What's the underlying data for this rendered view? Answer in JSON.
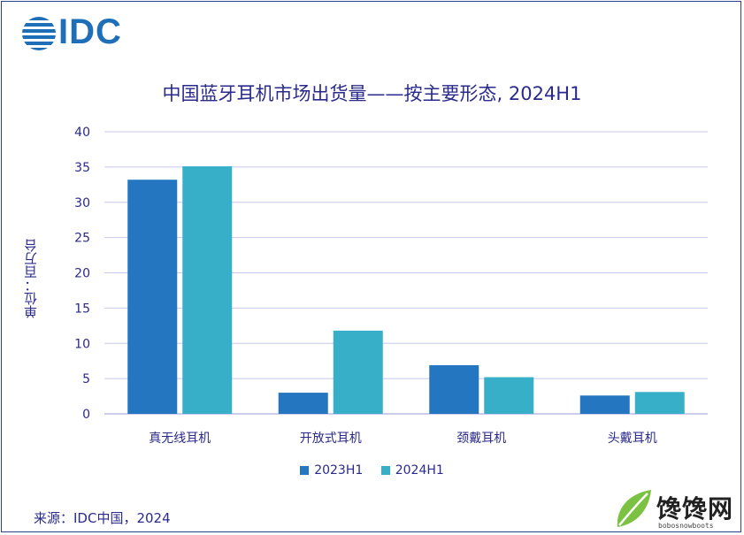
{
  "logo": {
    "text": "IDC",
    "color": "#1f6fb8"
  },
  "watermark": {
    "text": "馋馋网",
    "sub": "bobosnowboots"
  },
  "source": "来源：IDC中国，2024",
  "chart_data": {
    "type": "bar",
    "title": "中国蓝牙耳机市场出货量——按主要形态, 2024H1",
    "ylabel": "单位：百万台",
    "xlabel": "",
    "categories": [
      "真无线耳机",
      "开放式耳机",
      "颈戴耳机",
      "头戴耳机"
    ],
    "series": [
      {
        "name": "2023H1",
        "values": [
          33.2,
          3.0,
          6.9,
          2.6
        ],
        "color": "#2476c0"
      },
      {
        "name": "2024H1",
        "values": [
          35.1,
          11.8,
          5.2,
          3.1
        ],
        "color": "#38afc8"
      }
    ],
    "ylim": [
      0,
      40
    ],
    "yticks": [
      0,
      5,
      10,
      15,
      20,
      25,
      30,
      35,
      40
    ],
    "grid": true,
    "legend": "bottom"
  }
}
